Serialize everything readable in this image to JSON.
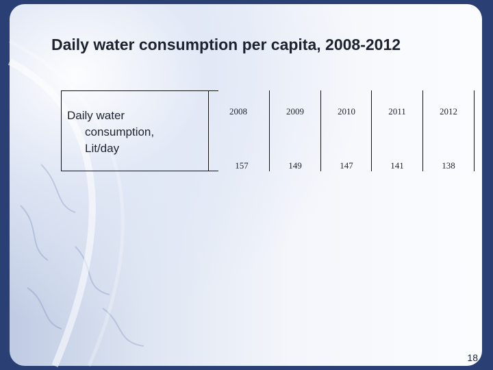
{
  "slide": {
    "title": "Daily water consumption per capita, 2008-2012",
    "page_number": "18"
  },
  "table": {
    "row_label_lines": [
      "Daily water",
      "consumption,",
      "Lit/day"
    ],
    "years": [
      "2008",
      "2009",
      "2010",
      "2011",
      "2012"
    ],
    "values": [
      "157",
      "149",
      "147",
      "141",
      "138"
    ]
  },
  "colors": {
    "background_dark": "#2a3f73",
    "text": "#1c2230"
  }
}
